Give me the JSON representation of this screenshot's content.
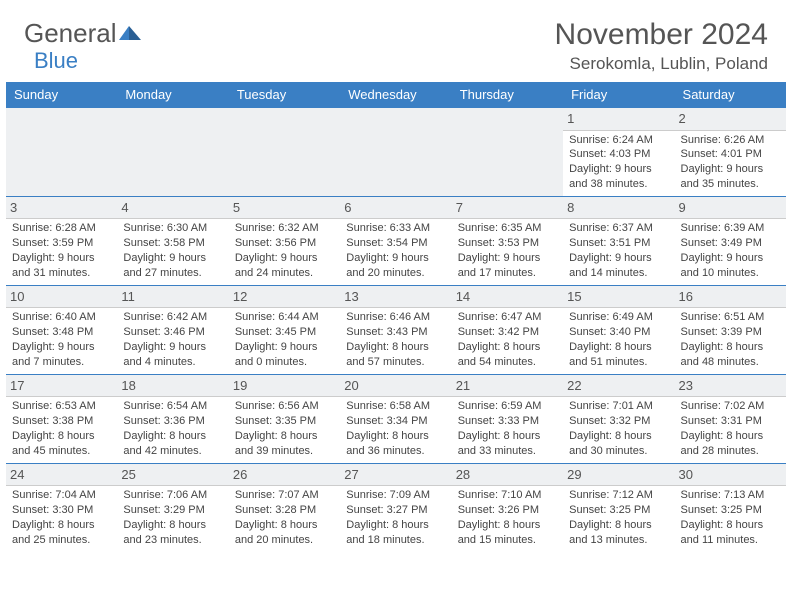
{
  "brand": {
    "word1": "General",
    "word2": "Blue"
  },
  "title": "November 2024",
  "location": "Serokomla, Lublin, Poland",
  "colors": {
    "header_bg": "#3a7fc4",
    "header_text": "#ffffff",
    "daynum_bg": "#eef0f2",
    "border": "#3a7fc4",
    "text": "#444444"
  },
  "day_names": [
    "Sunday",
    "Monday",
    "Tuesday",
    "Wednesday",
    "Thursday",
    "Friday",
    "Saturday"
  ],
  "weeks": [
    [
      null,
      null,
      null,
      null,
      null,
      {
        "n": "1",
        "sunrise": "Sunrise: 6:24 AM",
        "sunset": "Sunset: 4:03 PM",
        "d1": "Daylight: 9 hours",
        "d2": "and 38 minutes."
      },
      {
        "n": "2",
        "sunrise": "Sunrise: 6:26 AM",
        "sunset": "Sunset: 4:01 PM",
        "d1": "Daylight: 9 hours",
        "d2": "and 35 minutes."
      }
    ],
    [
      {
        "n": "3",
        "sunrise": "Sunrise: 6:28 AM",
        "sunset": "Sunset: 3:59 PM",
        "d1": "Daylight: 9 hours",
        "d2": "and 31 minutes."
      },
      {
        "n": "4",
        "sunrise": "Sunrise: 6:30 AM",
        "sunset": "Sunset: 3:58 PM",
        "d1": "Daylight: 9 hours",
        "d2": "and 27 minutes."
      },
      {
        "n": "5",
        "sunrise": "Sunrise: 6:32 AM",
        "sunset": "Sunset: 3:56 PM",
        "d1": "Daylight: 9 hours",
        "d2": "and 24 minutes."
      },
      {
        "n": "6",
        "sunrise": "Sunrise: 6:33 AM",
        "sunset": "Sunset: 3:54 PM",
        "d1": "Daylight: 9 hours",
        "d2": "and 20 minutes."
      },
      {
        "n": "7",
        "sunrise": "Sunrise: 6:35 AM",
        "sunset": "Sunset: 3:53 PM",
        "d1": "Daylight: 9 hours",
        "d2": "and 17 minutes."
      },
      {
        "n": "8",
        "sunrise": "Sunrise: 6:37 AM",
        "sunset": "Sunset: 3:51 PM",
        "d1": "Daylight: 9 hours",
        "d2": "and 14 minutes."
      },
      {
        "n": "9",
        "sunrise": "Sunrise: 6:39 AM",
        "sunset": "Sunset: 3:49 PM",
        "d1": "Daylight: 9 hours",
        "d2": "and 10 minutes."
      }
    ],
    [
      {
        "n": "10",
        "sunrise": "Sunrise: 6:40 AM",
        "sunset": "Sunset: 3:48 PM",
        "d1": "Daylight: 9 hours",
        "d2": "and 7 minutes."
      },
      {
        "n": "11",
        "sunrise": "Sunrise: 6:42 AM",
        "sunset": "Sunset: 3:46 PM",
        "d1": "Daylight: 9 hours",
        "d2": "and 4 minutes."
      },
      {
        "n": "12",
        "sunrise": "Sunrise: 6:44 AM",
        "sunset": "Sunset: 3:45 PM",
        "d1": "Daylight: 9 hours",
        "d2": "and 0 minutes."
      },
      {
        "n": "13",
        "sunrise": "Sunrise: 6:46 AM",
        "sunset": "Sunset: 3:43 PM",
        "d1": "Daylight: 8 hours",
        "d2": "and 57 minutes."
      },
      {
        "n": "14",
        "sunrise": "Sunrise: 6:47 AM",
        "sunset": "Sunset: 3:42 PM",
        "d1": "Daylight: 8 hours",
        "d2": "and 54 minutes."
      },
      {
        "n": "15",
        "sunrise": "Sunrise: 6:49 AM",
        "sunset": "Sunset: 3:40 PM",
        "d1": "Daylight: 8 hours",
        "d2": "and 51 minutes."
      },
      {
        "n": "16",
        "sunrise": "Sunrise: 6:51 AM",
        "sunset": "Sunset: 3:39 PM",
        "d1": "Daylight: 8 hours",
        "d2": "and 48 minutes."
      }
    ],
    [
      {
        "n": "17",
        "sunrise": "Sunrise: 6:53 AM",
        "sunset": "Sunset: 3:38 PM",
        "d1": "Daylight: 8 hours",
        "d2": "and 45 minutes."
      },
      {
        "n": "18",
        "sunrise": "Sunrise: 6:54 AM",
        "sunset": "Sunset: 3:36 PM",
        "d1": "Daylight: 8 hours",
        "d2": "and 42 minutes."
      },
      {
        "n": "19",
        "sunrise": "Sunrise: 6:56 AM",
        "sunset": "Sunset: 3:35 PM",
        "d1": "Daylight: 8 hours",
        "d2": "and 39 minutes."
      },
      {
        "n": "20",
        "sunrise": "Sunrise: 6:58 AM",
        "sunset": "Sunset: 3:34 PM",
        "d1": "Daylight: 8 hours",
        "d2": "and 36 minutes."
      },
      {
        "n": "21",
        "sunrise": "Sunrise: 6:59 AM",
        "sunset": "Sunset: 3:33 PM",
        "d1": "Daylight: 8 hours",
        "d2": "and 33 minutes."
      },
      {
        "n": "22",
        "sunrise": "Sunrise: 7:01 AM",
        "sunset": "Sunset: 3:32 PM",
        "d1": "Daylight: 8 hours",
        "d2": "and 30 minutes."
      },
      {
        "n": "23",
        "sunrise": "Sunrise: 7:02 AM",
        "sunset": "Sunset: 3:31 PM",
        "d1": "Daylight: 8 hours",
        "d2": "and 28 minutes."
      }
    ],
    [
      {
        "n": "24",
        "sunrise": "Sunrise: 7:04 AM",
        "sunset": "Sunset: 3:30 PM",
        "d1": "Daylight: 8 hours",
        "d2": "and 25 minutes."
      },
      {
        "n": "25",
        "sunrise": "Sunrise: 7:06 AM",
        "sunset": "Sunset: 3:29 PM",
        "d1": "Daylight: 8 hours",
        "d2": "and 23 minutes."
      },
      {
        "n": "26",
        "sunrise": "Sunrise: 7:07 AM",
        "sunset": "Sunset: 3:28 PM",
        "d1": "Daylight: 8 hours",
        "d2": "and 20 minutes."
      },
      {
        "n": "27",
        "sunrise": "Sunrise: 7:09 AM",
        "sunset": "Sunset: 3:27 PM",
        "d1": "Daylight: 8 hours",
        "d2": "and 18 minutes."
      },
      {
        "n": "28",
        "sunrise": "Sunrise: 7:10 AM",
        "sunset": "Sunset: 3:26 PM",
        "d1": "Daylight: 8 hours",
        "d2": "and 15 minutes."
      },
      {
        "n": "29",
        "sunrise": "Sunrise: 7:12 AM",
        "sunset": "Sunset: 3:25 PM",
        "d1": "Daylight: 8 hours",
        "d2": "and 13 minutes."
      },
      {
        "n": "30",
        "sunrise": "Sunrise: 7:13 AM",
        "sunset": "Sunset: 3:25 PM",
        "d1": "Daylight: 8 hours",
        "d2": "and 11 minutes."
      }
    ]
  ]
}
